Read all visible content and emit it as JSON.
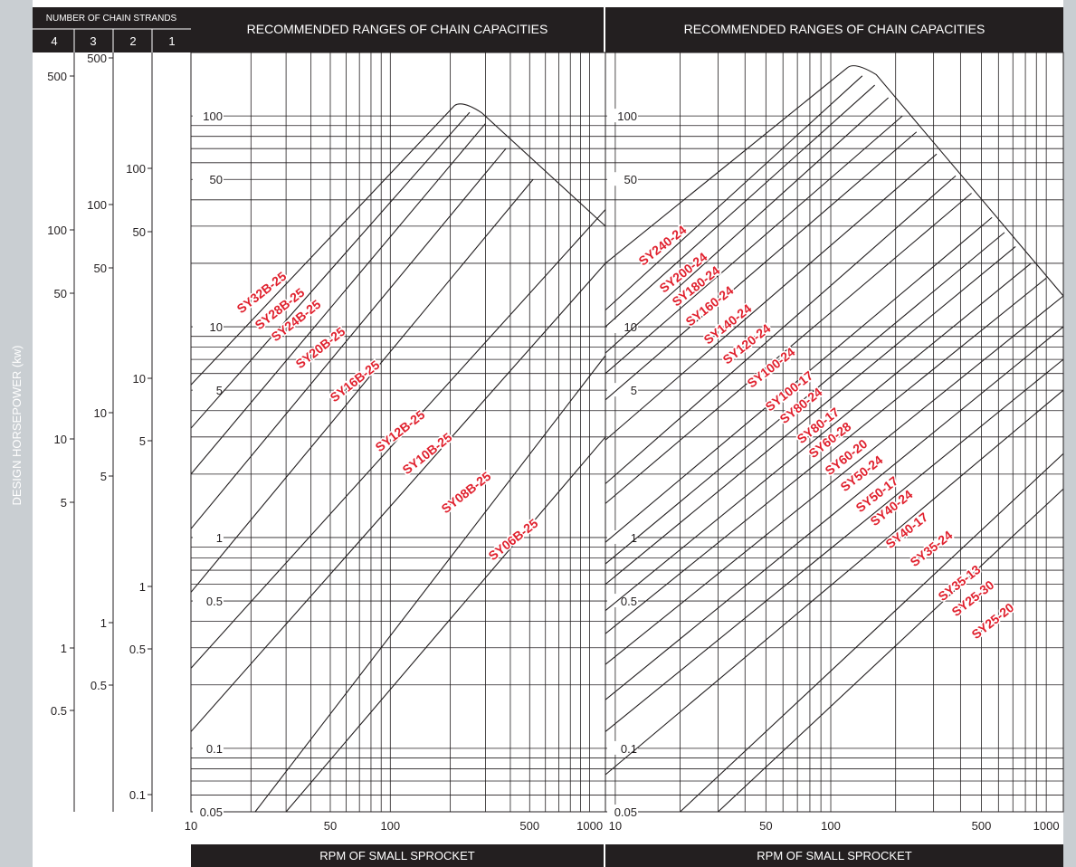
{
  "colors": {
    "header_bg": "#231f20",
    "left_strip": "#c9ced2",
    "label_red": "#e0212e",
    "line": "#231f20",
    "white": "#ffffff"
  },
  "header": {
    "strands_title": "NUMBER OF CHAIN STRANDS",
    "strand_numbers": [
      "4",
      "3",
      "2",
      "1"
    ]
  },
  "ylabel": "DESIGN HORSEPOWER (kw)",
  "strand_scales": [
    {
      "strands": "4",
      "ticks": [
        "500",
        "100",
        "50",
        "10",
        "5",
        "1",
        "0.5"
      ]
    },
    {
      "strands": "3",
      "ticks": [
        "500",
        "100",
        "50",
        "10",
        "5",
        "1",
        "0.5"
      ]
    },
    {
      "strands": "2",
      "ticks": [
        "100",
        "50",
        "10",
        "5",
        "1",
        "0.5",
        "0.1"
      ]
    }
  ],
  "chart_data": [
    {
      "type": "line",
      "title": "RECOMMENDED RANGES OF CHAIN CAPACITIES",
      "xlabel": "RPM OF SMALL SPROCKET",
      "ylabel": "DESIGN HORSEPOWER (kw)",
      "xscale": "log",
      "yscale": "log",
      "xlim": [
        10,
        1200
      ],
      "ylim": [
        0.05,
        200
      ],
      "x_ticks": [
        "10",
        "50",
        "100",
        "500",
        "1000"
      ],
      "y_ticks": [
        "100",
        "50",
        "10",
        "5",
        "1",
        "0.5",
        "0.1",
        "0.05"
      ],
      "grid": true,
      "envelope_peak": {
        "x": 230,
        "y": 112
      },
      "envelope_end": {
        "x": 1200,
        "y": 30
      },
      "series": [
        {
          "name": "SY32B-25",
          "points": [
            [
              10,
              5.3
            ],
            [
              210,
              112
            ]
          ]
        },
        {
          "name": "SY28B-25",
          "points": [
            [
              10,
              3.3
            ],
            [
              250,
              104
            ]
          ]
        },
        {
          "name": "SY24B-25",
          "points": [
            [
              10,
              2.0
            ],
            [
              300,
              92
            ]
          ]
        },
        {
          "name": "SY20B-25",
          "points": [
            [
              10,
              1.1
            ],
            [
              380,
              70
            ]
          ]
        },
        {
          "name": "SY16B-25",
          "points": [
            [
              10,
              0.55
            ],
            [
              520,
              50
            ]
          ]
        },
        {
          "name": "SY12B-25",
          "points": [
            [
              10,
              0.24
            ],
            [
              1200,
              36
            ]
          ]
        },
        {
          "name": "SY10B-25",
          "points": [
            [
              10,
              0.12
            ],
            [
              1200,
              20
            ]
          ]
        },
        {
          "name": "SY08B-25",
          "points": [
            [
              21,
              0.05
            ],
            [
              1200,
              7.3
            ]
          ]
        },
        {
          "name": "SY06B-25",
          "points": [
            [
              30,
              0.05
            ],
            [
              1200,
              3.0
            ]
          ]
        }
      ]
    },
    {
      "type": "line",
      "title": "RECOMMENDED RANGES OF CHAIN CAPACITIES",
      "xlabel": "RPM OF SMALL SPROCKET",
      "ylabel": "DESIGN HORSEPOWER (kw)",
      "xscale": "log",
      "yscale": "log",
      "xlim": [
        9,
        1200
      ],
      "ylim": [
        0.05,
        200
      ],
      "x_ticks": [
        "10",
        "50",
        "100",
        "500",
        "1000"
      ],
      "y_ticks": [
        "100",
        "50",
        "10",
        "5",
        "1",
        "0.5",
        "0.1",
        "0.05"
      ],
      "grid": true,
      "envelope_peak": {
        "x": 130,
        "y": 170
      },
      "envelope_end": {
        "x": 1200,
        "y": 14
      },
      "series": [
        {
          "name": "SY240-24",
          "points": [
            [
              9,
              20
            ],
            [
              120,
              170
            ]
          ]
        },
        {
          "name": "SY200-24",
          "points": [
            [
              9,
              12
            ],
            [
              140,
              155
            ]
          ]
        },
        {
          "name": "SY180-24",
          "points": [
            [
              9,
              10
            ],
            [
              160,
              140
            ]
          ]
        },
        {
          "name": "SY160-24",
          "points": [
            [
              9,
              7.5
            ],
            [
              185,
              122
            ]
          ]
        },
        {
          "name": "SY140-24",
          "points": [
            [
              9,
              6
            ],
            [
              215,
              100
            ]
          ]
        },
        {
          "name": "SY120-24",
          "points": [
            [
              9,
              4.5
            ],
            [
              250,
              84
            ]
          ]
        },
        {
          "name": "SY100-24",
          "points": [
            [
              9,
              2.9
            ],
            [
              310,
              66
            ]
          ]
        },
        {
          "name": "SY100-17",
          "points": [
            [
              9,
              1.8
            ],
            [
              380,
              52
            ]
          ]
        },
        {
          "name": "SY80-24",
          "points": [
            [
              9,
              1.45
            ],
            [
              450,
              43
            ]
          ]
        },
        {
          "name": "SY80-17",
          "points": [
            [
              9,
              0.95
            ],
            [
              560,
              33
            ]
          ]
        },
        {
          "name": "SY60-28",
          "points": [
            [
              9,
              0.75
            ],
            [
              640,
              28
            ]
          ]
        },
        {
          "name": "SY60-20",
          "points": [
            [
              9,
              0.6
            ],
            [
              720,
              24
            ]
          ]
        },
        {
          "name": "SY50-24",
          "points": [
            [
              9,
              0.45
            ],
            [
              850,
              20
            ]
          ]
        },
        {
          "name": "SY50-17",
          "points": [
            [
              9,
              0.35
            ],
            [
              1000,
              17
            ]
          ]
        },
        {
          "name": "SY40-24",
          "points": [
            [
              9,
              0.25
            ],
            [
              1200,
              14
            ]
          ]
        },
        {
          "name": "SY40-17",
          "points": [
            [
              9,
              0.17
            ],
            [
              1200,
              10
            ]
          ]
        },
        {
          "name": "SY35-24",
          "points": [
            [
              9,
              0.12
            ],
            [
              1200,
              7
            ]
          ]
        },
        {
          "name": "SY35-13",
          "points": [
            [
              9,
              0.075
            ],
            [
              1200,
              5
            ]
          ]
        },
        {
          "name": "SY25-30",
          "points": [
            [
              20,
              0.05
            ],
            [
              1200,
              2.5
            ]
          ]
        },
        {
          "name": "SY25-20",
          "points": [
            [
              30,
              0.05
            ],
            [
              1200,
              1.7
            ]
          ]
        }
      ]
    }
  ]
}
